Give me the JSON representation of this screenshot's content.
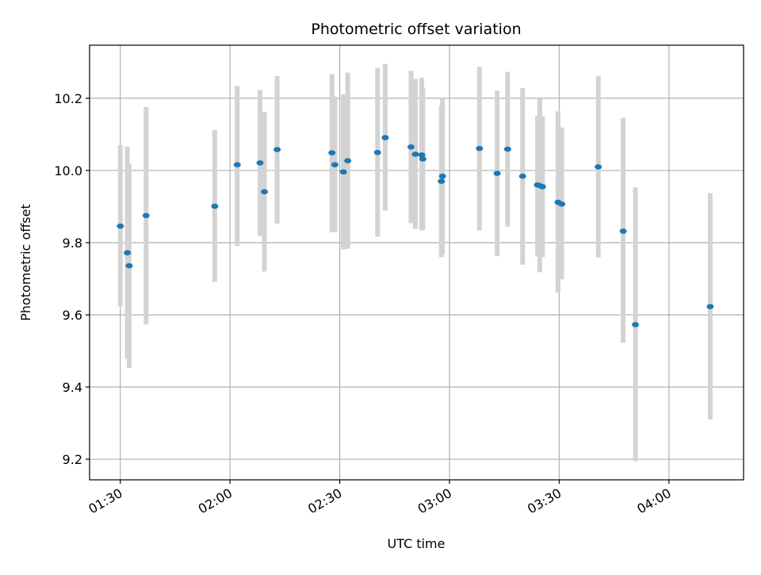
{
  "chart_data": {
    "type": "scatter",
    "title": "Photometric offset variation",
    "xlabel": "UTC time",
    "ylabel": "Photometric offset",
    "x_unit": "time of day (HH:MM)",
    "xlim": [
      "01:21:36",
      "04:20:24"
    ],
    "ylim": [
      9.143,
      10.347
    ],
    "xticks": [
      "01:30",
      "02:00",
      "02:30",
      "03:00",
      "03:30",
      "04:00"
    ],
    "yticks": [
      9.2,
      9.4,
      9.6,
      9.8,
      10.0,
      10.2
    ],
    "ytick_labels": [
      "9.2",
      "9.4",
      "9.6",
      "9.8",
      "10.0",
      "10.2"
    ],
    "grid": true,
    "point_color": "#1f77b4",
    "errorbar_color": "#d3d3d3",
    "series": [
      {
        "points": [
          {
            "x": "01:30:01",
            "y": 9.846,
            "y_low": 9.624,
            "y_high": 10.07
          },
          {
            "x": "01:31:55",
            "y": 9.772,
            "y_low": 9.478,
            "y_high": 10.066
          },
          {
            "x": "01:32:25",
            "y": 9.736,
            "y_low": 9.453,
            "y_high": 10.019
          },
          {
            "x": "01:37:03",
            "y": 9.875,
            "y_low": 9.574,
            "y_high": 10.176
          },
          {
            "x": "01:55:49",
            "y": 9.901,
            "y_low": 9.691,
            "y_high": 10.112
          },
          {
            "x": "02:01:58",
            "y": 10.016,
            "y_low": 9.791,
            "y_high": 10.234
          },
          {
            "x": "02:08:12",
            "y": 10.021,
            "y_low": 9.819,
            "y_high": 10.223
          },
          {
            "x": "02:09:24",
            "y": 9.941,
            "y_low": 9.72,
            "y_high": 10.162
          },
          {
            "x": "02:12:53",
            "y": 10.058,
            "y_low": 9.853,
            "y_high": 10.262
          },
          {
            "x": "02:27:52",
            "y": 10.049,
            "y_low": 9.829,
            "y_high": 10.267
          },
          {
            "x": "02:28:40",
            "y": 10.016,
            "y_low": 9.829,
            "y_high": 10.205
          },
          {
            "x": "02:30:59",
            "y": 9.996,
            "y_low": 9.781,
            "y_high": 10.211
          },
          {
            "x": "02:32:11",
            "y": 10.027,
            "y_low": 9.783,
            "y_high": 10.271
          },
          {
            "x": "02:40:20",
            "y": 10.05,
            "y_low": 9.816,
            "y_high": 10.284
          },
          {
            "x": "02:42:26",
            "y": 10.091,
            "y_low": 9.889,
            "y_high": 10.295
          },
          {
            "x": "02:49:29",
            "y": 10.065,
            "y_low": 9.854,
            "y_high": 10.276
          },
          {
            "x": "02:50:41",
            "y": 10.045,
            "y_low": 9.838,
            "y_high": 10.254
          },
          {
            "x": "02:52:25",
            "y": 10.043,
            "y_low": 9.834,
            "y_high": 10.257
          },
          {
            "x": "02:52:43",
            "y": 10.032,
            "y_low": 9.836,
            "y_high": 10.228
          },
          {
            "x": "02:57:47",
            "y": 9.97,
            "y_low": 9.76,
            "y_high": 10.18
          },
          {
            "x": "02:58:05",
            "y": 9.984,
            "y_low": 9.768,
            "y_high": 10.2
          },
          {
            "x": "03:08:12",
            "y": 10.061,
            "y_low": 9.834,
            "y_high": 10.287
          },
          {
            "x": "03:13:02",
            "y": 9.992,
            "y_low": 9.763,
            "y_high": 10.221
          },
          {
            "x": "03:15:54",
            "y": 10.059,
            "y_low": 9.845,
            "y_high": 10.273
          },
          {
            "x": "03:20:00",
            "y": 9.984,
            "y_low": 9.739,
            "y_high": 10.228
          },
          {
            "x": "03:24:04",
            "y": 9.96,
            "y_low": 9.762,
            "y_high": 10.152
          },
          {
            "x": "03:24:41",
            "y": 9.958,
            "y_low": 9.718,
            "y_high": 10.199
          },
          {
            "x": "03:25:26",
            "y": 9.955,
            "y_low": 9.76,
            "y_high": 10.15
          },
          {
            "x": "03:29:41",
            "y": 9.912,
            "y_low": 9.661,
            "y_high": 10.164
          },
          {
            "x": "03:30:41",
            "y": 9.907,
            "y_low": 9.698,
            "y_high": 10.119
          },
          {
            "x": "03:40:41",
            "y": 10.01,
            "y_low": 9.759,
            "y_high": 10.262
          },
          {
            "x": "03:47:29",
            "y": 9.832,
            "y_low": 9.523,
            "y_high": 10.146
          },
          {
            "x": "03:50:50",
            "y": 9.573,
            "y_low": 9.195,
            "y_high": 9.953
          },
          {
            "x": "04:11:17",
            "y": 9.623,
            "y_low": 9.31,
            "y_high": 9.937
          }
        ]
      }
    ]
  }
}
